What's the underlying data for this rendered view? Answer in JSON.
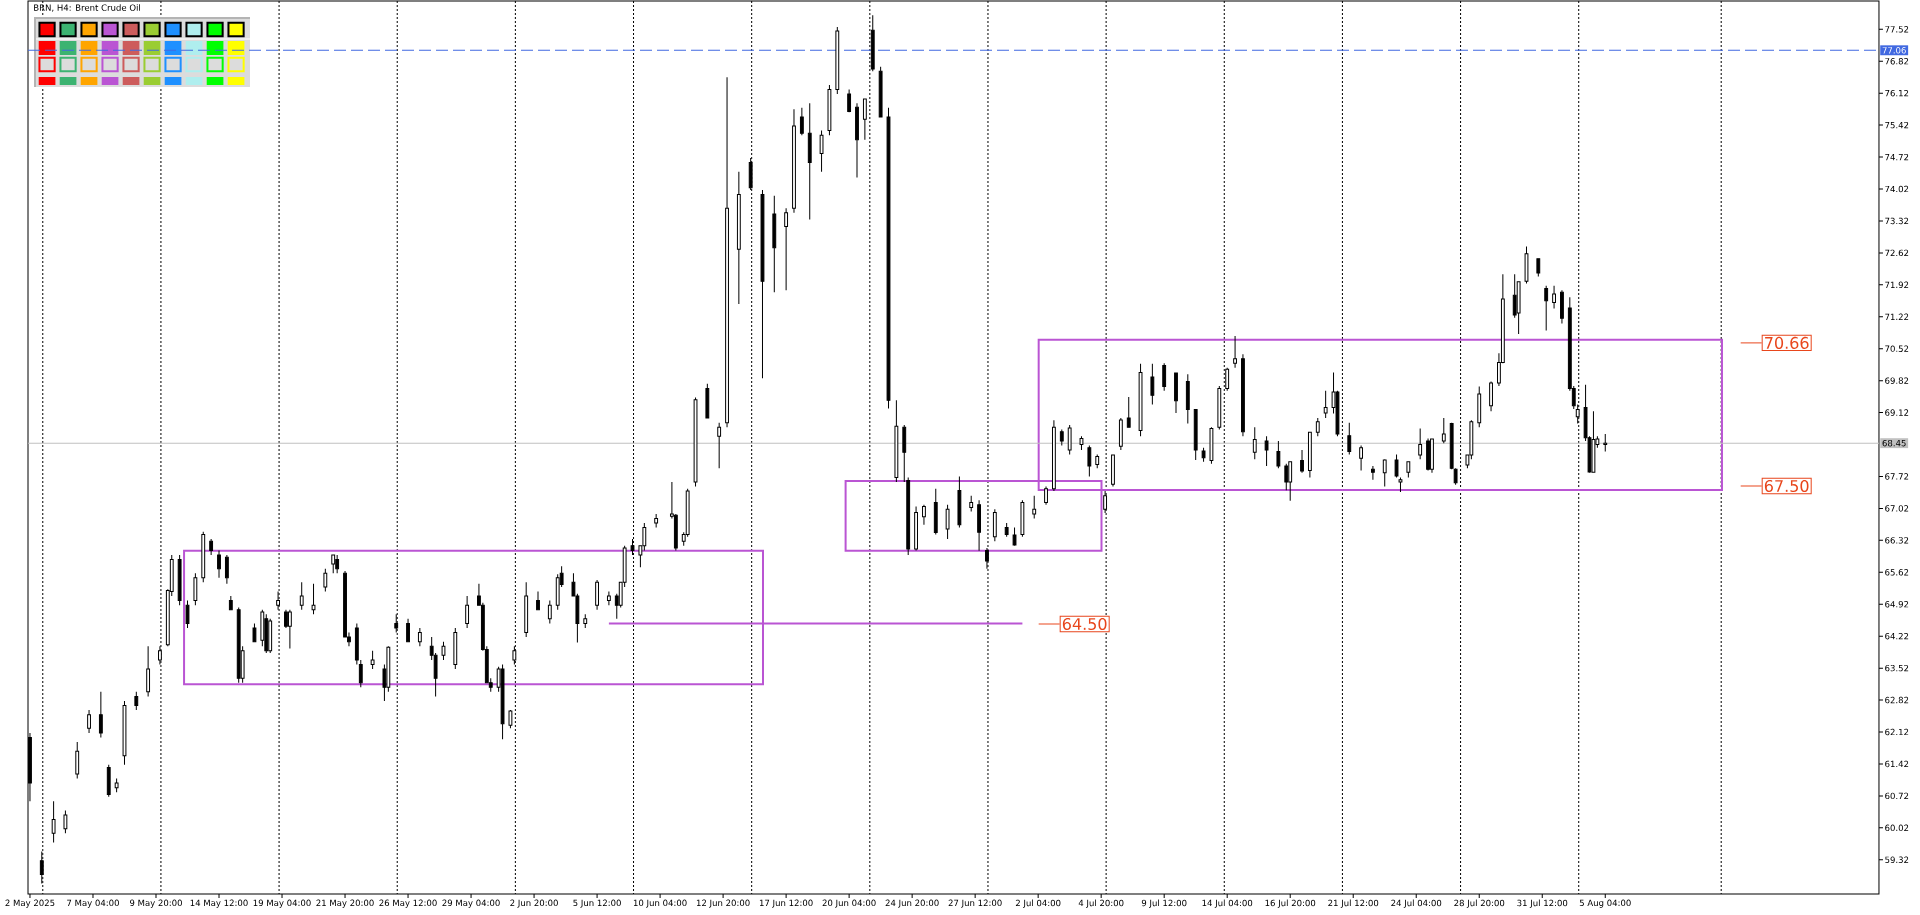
{
  "chart_data": {
    "type": "candlestick",
    "title": "BRN, H4: Brent Crude Oil",
    "categories": [
      "2 May 2025",
      null,
      null,
      null,
      null,
      null,
      null,
      null,
      null,
      null,
      null,
      null,
      null,
      null,
      null,
      null,
      "7 May 04:00",
      null,
      null,
      null,
      null,
      null,
      null,
      null,
      null,
      null,
      null,
      null,
      null,
      null,
      null,
      null,
      "9 May 20:00",
      null,
      null,
      null,
      null,
      null,
      null,
      null,
      null,
      null,
      null,
      null,
      null,
      null,
      null,
      null,
      "14 May 12:00",
      null,
      null,
      null,
      null,
      null,
      null,
      null,
      null,
      null,
      null,
      null,
      null,
      null,
      null,
      null,
      "19 May 04:00",
      null,
      null,
      null,
      null,
      null,
      null,
      null,
      null,
      null,
      null,
      null,
      null,
      null,
      null,
      null,
      "21 May 20:00",
      null,
      null,
      null,
      null,
      null,
      null,
      null,
      null,
      null,
      null,
      null,
      null,
      null,
      null,
      null,
      "26 May 12:00",
      null,
      null,
      null,
      null,
      null,
      null,
      null,
      null,
      null,
      null,
      null,
      null,
      null,
      null,
      null,
      "29 May 04:00",
      null,
      null,
      null,
      null,
      null,
      null,
      null,
      null,
      null,
      null,
      null,
      null,
      null,
      null,
      null,
      "2 Jun 20:00",
      null,
      null,
      null,
      null,
      null,
      null,
      null,
      null,
      null,
      null,
      null,
      null,
      null,
      null,
      null,
      "5 Jun 12:00",
      null,
      null,
      null,
      null,
      null,
      null,
      null,
      null,
      null,
      null,
      null,
      null,
      null,
      null,
      null,
      "10 Jun 04:00",
      null,
      null,
      null,
      null,
      null,
      null,
      null,
      null,
      null,
      null,
      null,
      null,
      null,
      null,
      null,
      "12 Jun 20:00",
      null,
      null,
      null,
      null,
      null,
      null,
      null,
      null,
      null,
      null,
      null,
      null,
      null,
      null,
      null,
      "17 Jun 12:00",
      null,
      null,
      null,
      null,
      null,
      null,
      null,
      null,
      null,
      null,
      null,
      null,
      null,
      null,
      null,
      "20 Jun 04:00",
      null,
      null,
      null,
      null,
      null,
      null,
      null,
      null,
      null,
      null,
      null,
      null,
      null,
      null,
      null,
      "24 Jun 20:00",
      null,
      null,
      null,
      null,
      null,
      null,
      null,
      null,
      null,
      null,
      null,
      null,
      null,
      null,
      null,
      "27 Jun 12:00",
      null,
      null,
      null,
      null,
      null,
      null,
      null,
      null,
      null,
      null,
      null,
      null,
      null,
      null,
      null,
      "2 Jul 04:00",
      null,
      null,
      null,
      null,
      null,
      null,
      null,
      null,
      null,
      null,
      null,
      null,
      null,
      null,
      null,
      "4 Jul 20:00",
      null,
      null,
      null,
      null,
      null,
      null,
      null,
      null,
      null,
      null,
      null,
      null,
      null,
      null,
      null,
      "9 Jul 12:00",
      null,
      null,
      null,
      null,
      null,
      null,
      null,
      null,
      null,
      null,
      null,
      null,
      null,
      null,
      null,
      "14 Jul 04:00",
      null,
      null,
      null,
      null,
      null,
      null,
      null,
      null,
      null,
      null,
      null,
      null,
      null,
      null,
      null,
      "16 Jul 20:00",
      null,
      null,
      null,
      null,
      null,
      null,
      null,
      null,
      null,
      null,
      null,
      null,
      null,
      null,
      null,
      "21 Jul 12:00",
      null,
      null,
      null,
      null,
      null,
      null,
      null,
      null,
      null,
      null,
      null,
      null,
      null,
      null,
      null,
      "24 Jul 04:00",
      null,
      null,
      null,
      null,
      null,
      null,
      null,
      null,
      null,
      null,
      null,
      null,
      null,
      null,
      null,
      "28 Jul 20:00",
      null,
      null,
      null,
      null,
      null,
      null,
      null,
      null,
      null,
      null,
      null,
      null,
      null,
      null,
      null,
      "31 Jul 12:00",
      null,
      null,
      null,
      null,
      null,
      null,
      null,
      null,
      null,
      null,
      null,
      null,
      null,
      null,
      null,
      "5 Aug 04:00",
      null,
      null,
      null,
      null,
      null,
      null,
      null,
      null,
      null,
      null,
      null,
      null,
      null,
      null,
      null,
      null,
      null,
      null,
      null,
      null,
      null,
      null,
      null,
      null,
      null,
      null,
      null,
      null,
      null,
      null,
      null,
      null,
      null,
      null,
      null,
      null,
      null,
      null,
      null,
      null,
      null,
      null,
      null,
      null,
      null,
      null,
      null,
      null,
      null,
      null,
      null,
      null,
      null,
      null,
      null,
      null,
      null,
      null,
      null,
      null,
      null,
      null,
      null,
      null,
      null,
      null,
      null,
      null,
      null
    ],
    "ohlc": [
      [
        62.0,
        62.1,
        60.6,
        61.0
      ],
      null,
      null,
      [
        59.3,
        59.5,
        58.8,
        59.0
      ],
      null,
      null,
      [
        59.9,
        60.6,
        59.7,
        60.2
      ],
      null,
      null,
      [
        60.0,
        60.4,
        59.9,
        60.3
      ],
      null,
      null,
      [
        61.2,
        61.9,
        61.1,
        61.7
      ],
      null,
      null,
      [
        62.2,
        62.6,
        62.1,
        62.5
      ],
      null,
      null,
      [
        62.5,
        63.0,
        62.0,
        62.1
      ],
      null,
      [
        61.34,
        61.4,
        60.7,
        60.75
      ],
      null,
      [
        60.9,
        61.1,
        60.8,
        61.0
      ],
      null,
      [
        61.6,
        62.8,
        61.4,
        62.7
      ],
      null,
      null,
      [
        62.9,
        63.0,
        62.6,
        62.7
      ],
      null,
      null,
      [
        63.0,
        64.0,
        62.9,
        63.5
      ],
      null,
      null,
      [
        63.7,
        64.0,
        63.6,
        63.9
      ],
      null,
      [
        64.03,
        65.25,
        64.0,
        65.22
      ],
      [
        65.2,
        66.0,
        65.1,
        65.9
      ],
      null,
      [
        65.9,
        66.0,
        64.9,
        65.0
      ],
      null,
      [
        64.9,
        65.0,
        64.4,
        64.5
      ],
      null,
      [
        65.0,
        65.6,
        64.9,
        65.5
      ],
      null,
      [
        65.5,
        66.51,
        65.4,
        66.45
      ],
      null,
      [
        66.3,
        66.35,
        66.0,
        66.1
      ],
      null,
      [
        66.0,
        66.1,
        65.5,
        65.7
      ],
      null,
      [
        65.95,
        66.0,
        65.37,
        65.5
      ],
      [
        65.0,
        65.1,
        64.8,
        64.8
      ],
      null,
      [
        64.8,
        64.85,
        63.2,
        63.3
      ],
      [
        63.3,
        64.0,
        63.2,
        63.9
      ],
      null,
      null,
      [
        64.4,
        64.5,
        64.1,
        64.1
      ],
      null,
      [
        64.13,
        64.8,
        64.0,
        64.75
      ],
      [
        64.6,
        64.7,
        63.85,
        63.9
      ],
      [
        63.9,
        64.6,
        63.85,
        64.55
      ],
      null,
      [
        64.9,
        65.2,
        64.8,
        65.0
      ],
      null,
      [
        64.75,
        64.8,
        64.4,
        64.44
      ],
      [
        64.44,
        64.8,
        63.95,
        64.75
      ],
      null,
      null,
      [
        64.9,
        65.4,
        64.8,
        65.1
      ],
      null,
      null,
      [
        64.8,
        65.37,
        64.7,
        64.9
      ],
      null,
      null,
      [
        65.3,
        65.7,
        65.2,
        65.6
      ],
      null,
      [
        65.8,
        66.0,
        65.6,
        66.0
      ],
      [
        65.9,
        66.0,
        65.6,
        65.7
      ],
      null,
      [
        65.6,
        65.65,
        64.2,
        64.2
      ],
      [
        64.2,
        64.3,
        64.0,
        64.1
      ],
      null,
      [
        64.4,
        64.5,
        63.6,
        63.7
      ],
      [
        63.6,
        63.7,
        63.1,
        63.2
      ],
      null,
      null,
      [
        63.6,
        63.9,
        63.5,
        63.7
      ],
      null,
      null,
      [
        63.5,
        63.6,
        62.8,
        63.1
      ],
      [
        63.1,
        64.0,
        63.0,
        63.98
      ],
      null,
      [
        64.5,
        64.7,
        64.3,
        64.4
      ],
      null,
      null,
      [
        64.5,
        64.6,
        64.1,
        64.1
      ],
      null,
      null,
      [
        64.1,
        64.4,
        64.0,
        64.3
      ],
      null,
      null,
      [
        64.0,
        64.2,
        63.7,
        63.8
      ],
      [
        63.8,
        63.85,
        62.9,
        63.3
      ],
      null,
      [
        63.8,
        64.1,
        63.7,
        64.0
      ],
      null,
      null,
      [
        63.6,
        64.4,
        63.5,
        64.3
      ],
      null,
      null,
      [
        64.5,
        65.1,
        64.4,
        64.9
      ],
      null,
      null,
      [
        65.1,
        65.37,
        64.9,
        64.9
      ],
      [
        64.9,
        64.95,
        63.9,
        63.93
      ],
      [
        63.93,
        64.0,
        63.2,
        63.2
      ],
      [
        63.2,
        63.3,
        63.0,
        63.1
      ],
      null,
      [
        63.1,
        63.55,
        63.0,
        63.5
      ],
      [
        63.5,
        63.6,
        61.96,
        62.3
      ],
      null,
      [
        62.27,
        62.6,
        62.2,
        62.58
      ],
      [
        63.7,
        64.0,
        63.6,
        63.9
      ],
      null,
      null,
      [
        64.3,
        65.4,
        64.2,
        65.1
      ],
      null,
      null,
      [
        65.0,
        65.2,
        64.8,
        64.8
      ],
      null,
      null,
      [
        64.6,
        65.0,
        64.5,
        64.9
      ],
      null,
      [
        64.9,
        65.58,
        64.8,
        65.5
      ],
      [
        65.6,
        65.75,
        65.3,
        65.35
      ],
      null,
      null,
      [
        65.4,
        65.6,
        65.1,
        65.1
      ],
      [
        65.1,
        65.15,
        64.08,
        64.5
      ],
      null,
      [
        64.5,
        64.7,
        64.4,
        64.6
      ],
      null,
      null,
      [
        64.9,
        65.45,
        64.8,
        65.4
      ],
      null,
      null,
      [
        65.0,
        65.2,
        64.9,
        65.1
      ],
      null,
      [
        65.1,
        65.15,
        64.6,
        64.9
      ],
      [
        64.9,
        65.4,
        64.85,
        65.4
      ],
      [
        65.4,
        66.2,
        65.3,
        66.15
      ],
      null,
      [
        66.2,
        66.35,
        66.0,
        66.1
      ],
      null,
      [
        66.0,
        66.2,
        65.73,
        66.2
      ],
      [
        66.2,
        66.7,
        66.1,
        66.6
      ],
      null,
      null,
      [
        66.7,
        66.9,
        66.6,
        66.8
      ],
      null,
      null,
      null,
      [
        66.85,
        67.6,
        66.8,
        66.9
      ],
      [
        66.87,
        66.9,
        66.1,
        66.15
      ],
      null,
      [
        66.3,
        66.5,
        66.2,
        66.45
      ],
      [
        66.45,
        67.45,
        66.4,
        67.4
      ],
      null,
      [
        67.6,
        69.45,
        67.5,
        69.4
      ],
      null,
      null,
      [
        69.65,
        69.75,
        68.99,
        69.0
      ],
      null,
      null,
      [
        68.6,
        68.9,
        67.9,
        68.8
      ],
      null,
      [
        68.9,
        76.47,
        68.8,
        73.6
      ],
      null,
      null,
      [
        72.7,
        74.4,
        71.5,
        73.9
      ],
      null,
      null,
      [
        74.6,
        74.7,
        74.0,
        74.05
      ],
      null,
      null,
      [
        73.9,
        74.0,
        69.87,
        72.0
      ],
      null,
      null,
      [
        73.47,
        73.87,
        71.76,
        72.73
      ],
      null,
      null,
      [
        73.2,
        73.6,
        71.8,
        73.5
      ],
      null,
      [
        73.6,
        75.77,
        73.5,
        75.4
      ],
      null,
      [
        75.6,
        75.8,
        75.2,
        75.24
      ],
      null,
      [
        75.24,
        75.9,
        73.35,
        74.6
      ],
      null,
      null,
      [
        74.8,
        75.3,
        74.4,
        75.2
      ],
      null,
      [
        75.3,
        76.3,
        75.2,
        76.2
      ],
      null,
      [
        76.2,
        77.57,
        76.1,
        77.48
      ],
      null,
      null,
      [
        76.1,
        76.2,
        75.7,
        75.72
      ],
      null,
      [
        75.81,
        75.9,
        74.27,
        75.1
      ],
      null,
      [
        75.55,
        76.0,
        75.1,
        75.99
      ],
      null,
      [
        77.5,
        77.83,
        76.6,
        76.65
      ],
      null,
      [
        76.6,
        76.7,
        75.6,
        75.6
      ],
      null,
      [
        75.6,
        75.8,
        69.21,
        69.39
      ],
      null,
      [
        67.7,
        69.39,
        67.6,
        68.82
      ],
      null,
      [
        68.8,
        68.85,
        67.6,
        68.25
      ],
      [
        67.63,
        67.7,
        66.0,
        66.13
      ],
      null,
      [
        66.13,
        67.06,
        66.1,
        66.93
      ],
      null,
      [
        66.84,
        67.1,
        66.66,
        67.06
      ],
      null,
      null,
      [
        67.15,
        67.45,
        66.45,
        66.49
      ],
      null,
      null,
      [
        66.57,
        67.1,
        66.35,
        67.0
      ],
      null,
      null,
      [
        67.41,
        67.72,
        66.6,
        66.66
      ],
      null,
      null,
      [
        67.04,
        67.3,
        66.95,
        67.15
      ],
      null,
      [
        67.1,
        67.2,
        66.09,
        66.5
      ],
      null,
      [
        66.1,
        66.15,
        65.7,
        65.87
      ],
      null,
      [
        66.4,
        67.0,
        66.3,
        66.93
      ],
      null,
      null,
      [
        66.6,
        66.7,
        66.4,
        66.45
      ],
      null,
      [
        66.44,
        66.6,
        66.2,
        66.22
      ],
      null,
      [
        66.45,
        67.2,
        66.4,
        67.15
      ],
      null,
      null,
      [
        66.9,
        67.3,
        66.8,
        67.0
      ],
      null,
      null,
      [
        67.15,
        67.5,
        67.1,
        67.45
      ],
      null,
      [
        67.45,
        68.95,
        67.4,
        68.8
      ],
      null,
      [
        68.7,
        68.75,
        68.4,
        68.5
      ],
      null,
      [
        68.3,
        68.85,
        68.2,
        68.78
      ],
      null,
      null,
      [
        68.42,
        68.6,
        68.3,
        68.55
      ],
      null,
      [
        68.35,
        68.4,
        67.72,
        67.95
      ],
      null,
      [
        67.98,
        68.2,
        67.9,
        68.16
      ],
      null,
      [
        67.0,
        67.4,
        66.92,
        67.3
      ],
      null,
      [
        67.55,
        68.2,
        67.5,
        68.19
      ],
      null,
      [
        68.38,
        69.0,
        68.3,
        68.96
      ],
      null,
      [
        69.0,
        69.46,
        68.8,
        68.8
      ],
      null,
      null,
      [
        68.73,
        70.19,
        68.6,
        70.0
      ],
      null,
      null,
      [
        69.9,
        70.19,
        69.3,
        69.5
      ],
      null,
      null,
      [
        70.15,
        70.2,
        69.6,
        69.69
      ],
      null,
      null,
      [
        69.99,
        70.0,
        69.11,
        69.38
      ],
      null,
      null,
      [
        69.8,
        69.96,
        68.88,
        69.19
      ],
      null,
      [
        69.19,
        69.2,
        68.08,
        68.3
      ],
      null,
      [
        68.28,
        68.35,
        68.04,
        68.13
      ],
      null,
      [
        68.07,
        68.8,
        68.0,
        68.77
      ],
      null,
      [
        68.8,
        69.7,
        68.75,
        69.65
      ],
      null,
      [
        69.65,
        70.1,
        69.6,
        70.07
      ],
      null,
      [
        70.2,
        70.8,
        70.1,
        70.3
      ],
      null,
      [
        70.3,
        70.4,
        68.6,
        68.7
      ],
      null,
      null,
      [
        68.25,
        68.8,
        68.1,
        68.53
      ],
      null,
      null,
      [
        68.5,
        68.6,
        67.95,
        68.3
      ],
      null,
      null,
      [
        68.27,
        68.5,
        67.9,
        67.95
      ],
      null,
      [
        67.95,
        68.0,
        67.42,
        67.6
      ],
      [
        67.6,
        68.05,
        67.19,
        68.04
      ],
      null,
      null,
      [
        68.07,
        68.3,
        67.8,
        67.84
      ],
      null,
      [
        67.85,
        68.7,
        67.7,
        68.69
      ],
      null,
      [
        68.69,
        69.0,
        68.6,
        68.92
      ],
      null,
      [
        69.11,
        69.6,
        69.0,
        69.23
      ],
      null,
      [
        69.23,
        70.0,
        69.1,
        69.57
      ],
      [
        69.57,
        69.6,
        68.6,
        68.65
      ],
      null,
      null,
      [
        68.61,
        68.9,
        68.2,
        68.27
      ],
      null,
      null,
      [
        68.12,
        68.4,
        67.85,
        68.35
      ],
      null,
      null,
      [
        67.88,
        67.95,
        67.65,
        67.81
      ],
      null,
      null,
      [
        67.8,
        68.1,
        67.5,
        68.08
      ],
      null,
      null,
      [
        68.08,
        68.2,
        67.7,
        67.73
      ],
      [
        67.6,
        67.7,
        67.38,
        67.65
      ],
      null,
      [
        67.81,
        68.04,
        67.7,
        68.04
      ],
      null,
      null,
      [
        68.19,
        68.77,
        68.1,
        68.42
      ],
      null,
      [
        68.5,
        68.55,
        67.85,
        67.88
      ],
      [
        67.88,
        68.54,
        67.8,
        68.54
      ],
      null,
      null,
      [
        68.5,
        69.0,
        68.45,
        68.65
      ],
      null,
      [
        68.88,
        68.9,
        67.88,
        67.9
      ],
      [
        67.88,
        67.9,
        67.54,
        67.58
      ],
      null,
      null,
      [
        67.97,
        68.2,
        67.9,
        68.19
      ],
      [
        68.19,
        68.95,
        68.1,
        68.92
      ],
      null,
      [
        68.9,
        69.69,
        68.8,
        69.53
      ],
      null,
      null,
      [
        69.27,
        69.8,
        69.15,
        69.77
      ],
      null,
      [
        69.77,
        70.42,
        69.7,
        70.22
      ],
      [
        70.22,
        72.15,
        70.2,
        71.61
      ],
      null,
      null,
      [
        71.69,
        72.15,
        71.2,
        71.26
      ],
      [
        71.3,
        72.0,
        70.84,
        71.99
      ],
      null,
      [
        72.0,
        72.76,
        71.95,
        72.6
      ],
      null,
      null,
      [
        72.49,
        72.5,
        72.1,
        72.18
      ],
      null,
      [
        71.84,
        71.9,
        70.92,
        71.57
      ],
      null,
      [
        71.53,
        71.9,
        71.4,
        71.72
      ],
      null,
      [
        71.76,
        71.8,
        71.07,
        71.19
      ],
      null,
      [
        71.41,
        71.65,
        69.6,
        69.65
      ],
      [
        69.65,
        69.7,
        69.2,
        69.27
      ],
      [
        69.03,
        69.3,
        68.88,
        69.19
      ],
      null,
      [
        69.23,
        69.73,
        68.5,
        68.57
      ],
      [
        68.57,
        68.6,
        67.8,
        67.82
      ],
      [
        67.81,
        69.15,
        67.8,
        68.53
      ],
      [
        68.42,
        68.6,
        68.35,
        68.54
      ],
      null,
      [
        68.42,
        68.65,
        68.27,
        68.45
      ],
      null,
      null,
      null,
      null,
      null,
      null,
      null,
      null,
      null,
      null,
      null,
      null,
      null,
      null,
      null,
      null,
      null,
      null,
      null,
      null,
      null,
      null,
      null,
      null,
      null,
      null,
      null,
      null,
      null,
      null,
      null,
      null,
      null,
      null,
      null,
      null,
      null,
      null,
      null,
      null,
      null,
      null,
      null,
      null,
      null,
      null,
      null,
      null,
      null,
      null,
      null,
      null,
      null,
      null,
      null,
      null,
      null,
      null,
      null,
      null,
      null,
      null,
      null,
      null,
      null,
      null,
      null,
      null,
      null
    ],
    "series": [
      {
        "type": "line",
        "color": "#ba55d3",
        "values": [
          null,
          null,
          null,
          null,
          null,
          null,
          null,
          null,
          null,
          null,
          null,
          null,
          null,
          null,
          null,
          null,
          null,
          null,
          null,
          null,
          null,
          null,
          null,
          null,
          null,
          null,
          null,
          null,
          null,
          null,
          null,
          null,
          null,
          null,
          null,
          null,
          null,
          null,
          null,
          null,
          null,
          null,
          null,
          null,
          null,
          null,
          null,
          null,
          null,
          null,
          null,
          null,
          null,
          null,
          null,
          null,
          null,
          null,
          null,
          null,
          null,
          null,
          null,
          null,
          null,
          null,
          null,
          null,
          null,
          null,
          null,
          null,
          null,
          null,
          null,
          null,
          null,
          null,
          null,
          null,
          null,
          null,
          null,
          null,
          null,
          null,
          null,
          null,
          null,
          null,
          null,
          null,
          null,
          null,
          null,
          null,
          null,
          null,
          null,
          null,
          null,
          null,
          null,
          null,
          null,
          null,
          null,
          null,
          null,
          null,
          null,
          null,
          null,
          null,
          null,
          null,
          null,
          null,
          null,
          null,
          null,
          null,
          null,
          null,
          null,
          null,
          null,
          null,
          null,
          null,
          null,
          null,
          null,
          null,
          null,
          null,
          null,
          null,
          null,
          null,
          null,
          null,
          null,
          null,
          null,
          null,
          null,
          64.5,
          64.5,
          64.5,
          64.5,
          64.5,
          64.5,
          64.5,
          64.5,
          64.5,
          64.5,
          64.5,
          64.5,
          64.5,
          64.5,
          64.5,
          64.5,
          64.5,
          64.5,
          64.5,
          64.5,
          64.5,
          64.5,
          64.5,
          64.5,
          64.5,
          64.5,
          64.5,
          64.5,
          64.5,
          64.5,
          64.5,
          64.5,
          64.5,
          64.5,
          64.5,
          64.5,
          64.5,
          64.5,
          64.5,
          64.5,
          64.5,
          64.5,
          64.5,
          64.5,
          64.5,
          64.5,
          64.5,
          64.5,
          64.5,
          64.5,
          64.5,
          64.5,
          64.5,
          64.5,
          64.5,
          64.5,
          64.5,
          64.5,
          64.5,
          64.5,
          64.5,
          64.5,
          64.5,
          64.5,
          64.5,
          64.5,
          64.5,
          64.5,
          64.5,
          64.5,
          64.5,
          64.5,
          64.5,
          64.5,
          64.5,
          64.5,
          64.5,
          64.5,
          64.5,
          64.5,
          64.5,
          64.5,
          64.5,
          64.5,
          64.5,
          64.5,
          64.5,
          64.5,
          64.5,
          64.5,
          64.5,
          64.5,
          64.5,
          64.5,
          64.5,
          64.5,
          64.5,
          64.5,
          64.5,
          64.5,
          64.5,
          64.5,
          64.5,
          64.5,
          64.5,
          64.5,
          null,
          null,
          null,
          null,
          null,
          null,
          null,
          null,
          null,
          null,
          null,
          null,
          null,
          null,
          null,
          null,
          null,
          null,
          null,
          null,
          null,
          null,
          null,
          null,
          null,
          null,
          null,
          null,
          null,
          null,
          null,
          null,
          null,
          null,
          null,
          null,
          null,
          null,
          null,
          null,
          null,
          null,
          null,
          null,
          null,
          null,
          null,
          null,
          null,
          null,
          null,
          null,
          null,
          null,
          null,
          null,
          null,
          null,
          null,
          null,
          null,
          null,
          null,
          null,
          null,
          null,
          null,
          null,
          null,
          null,
          null,
          null,
          null,
          null,
          null,
          null,
          null,
          null,
          null,
          null,
          null,
          null,
          null,
          null,
          null,
          null,
          null,
          null,
          null,
          null,
          null,
          null,
          null,
          null,
          null,
          null,
          null,
          null,
          null,
          null,
          null,
          null,
          null,
          null,
          null,
          null,
          null,
          null,
          null,
          null,
          null,
          null,
          null,
          null,
          null,
          null,
          null,
          null,
          null,
          null,
          null,
          null,
          null,
          null,
          null,
          null,
          null,
          null,
          null,
          null,
          null,
          null,
          null,
          null,
          null,
          null,
          null,
          null,
          null,
          null,
          null,
          null,
          null,
          null,
          null,
          null,
          null,
          null,
          null,
          null,
          null,
          null,
          null,
          null,
          null,
          null,
          null,
          null,
          null,
          null,
          null,
          null,
          null,
          null,
          null,
          null,
          null,
          null,
          null,
          null,
          null,
          null,
          null,
          null,
          null,
          null,
          null,
          null,
          null,
          null,
          null,
          null,
          null,
          null,
          null,
          null,
          null,
          null,
          null,
          null,
          null,
          null,
          null,
          null,
          null,
          null,
          null,
          null,
          null,
          null,
          null,
          null,
          null,
          null,
          null,
          null,
          null,
          null,
          null,
          null,
          null,
          null,
          null,
          null,
          null,
          null,
          null
        ]
      }
    ],
    "ylim": [
      58.57,
      78.14
    ],
    "yticks": [
      59.32,
      60.02,
      60.72,
      61.42,
      62.12,
      62.82,
      63.52,
      64.22,
      64.92,
      65.62,
      66.32,
      67.02,
      67.72,
      69.12,
      69.82,
      70.52,
      71.22,
      71.92,
      72.62,
      73.32,
      74.02,
      74.72,
      75.42,
      76.12,
      76.82,
      77.52
    ],
    "ref_lines": [
      {
        "axis": "y",
        "value": 68.45,
        "label": "68.45",
        "color": "#c0c0c0",
        "line_style": "solid"
      },
      {
        "axis": "y",
        "value": 77.06,
        "label": "77.06",
        "color": "#4169e1",
        "line_style": "dashed"
      }
    ],
    "annotations": [
      "70.66",
      "67.50",
      "64.50"
    ]
  }
}
